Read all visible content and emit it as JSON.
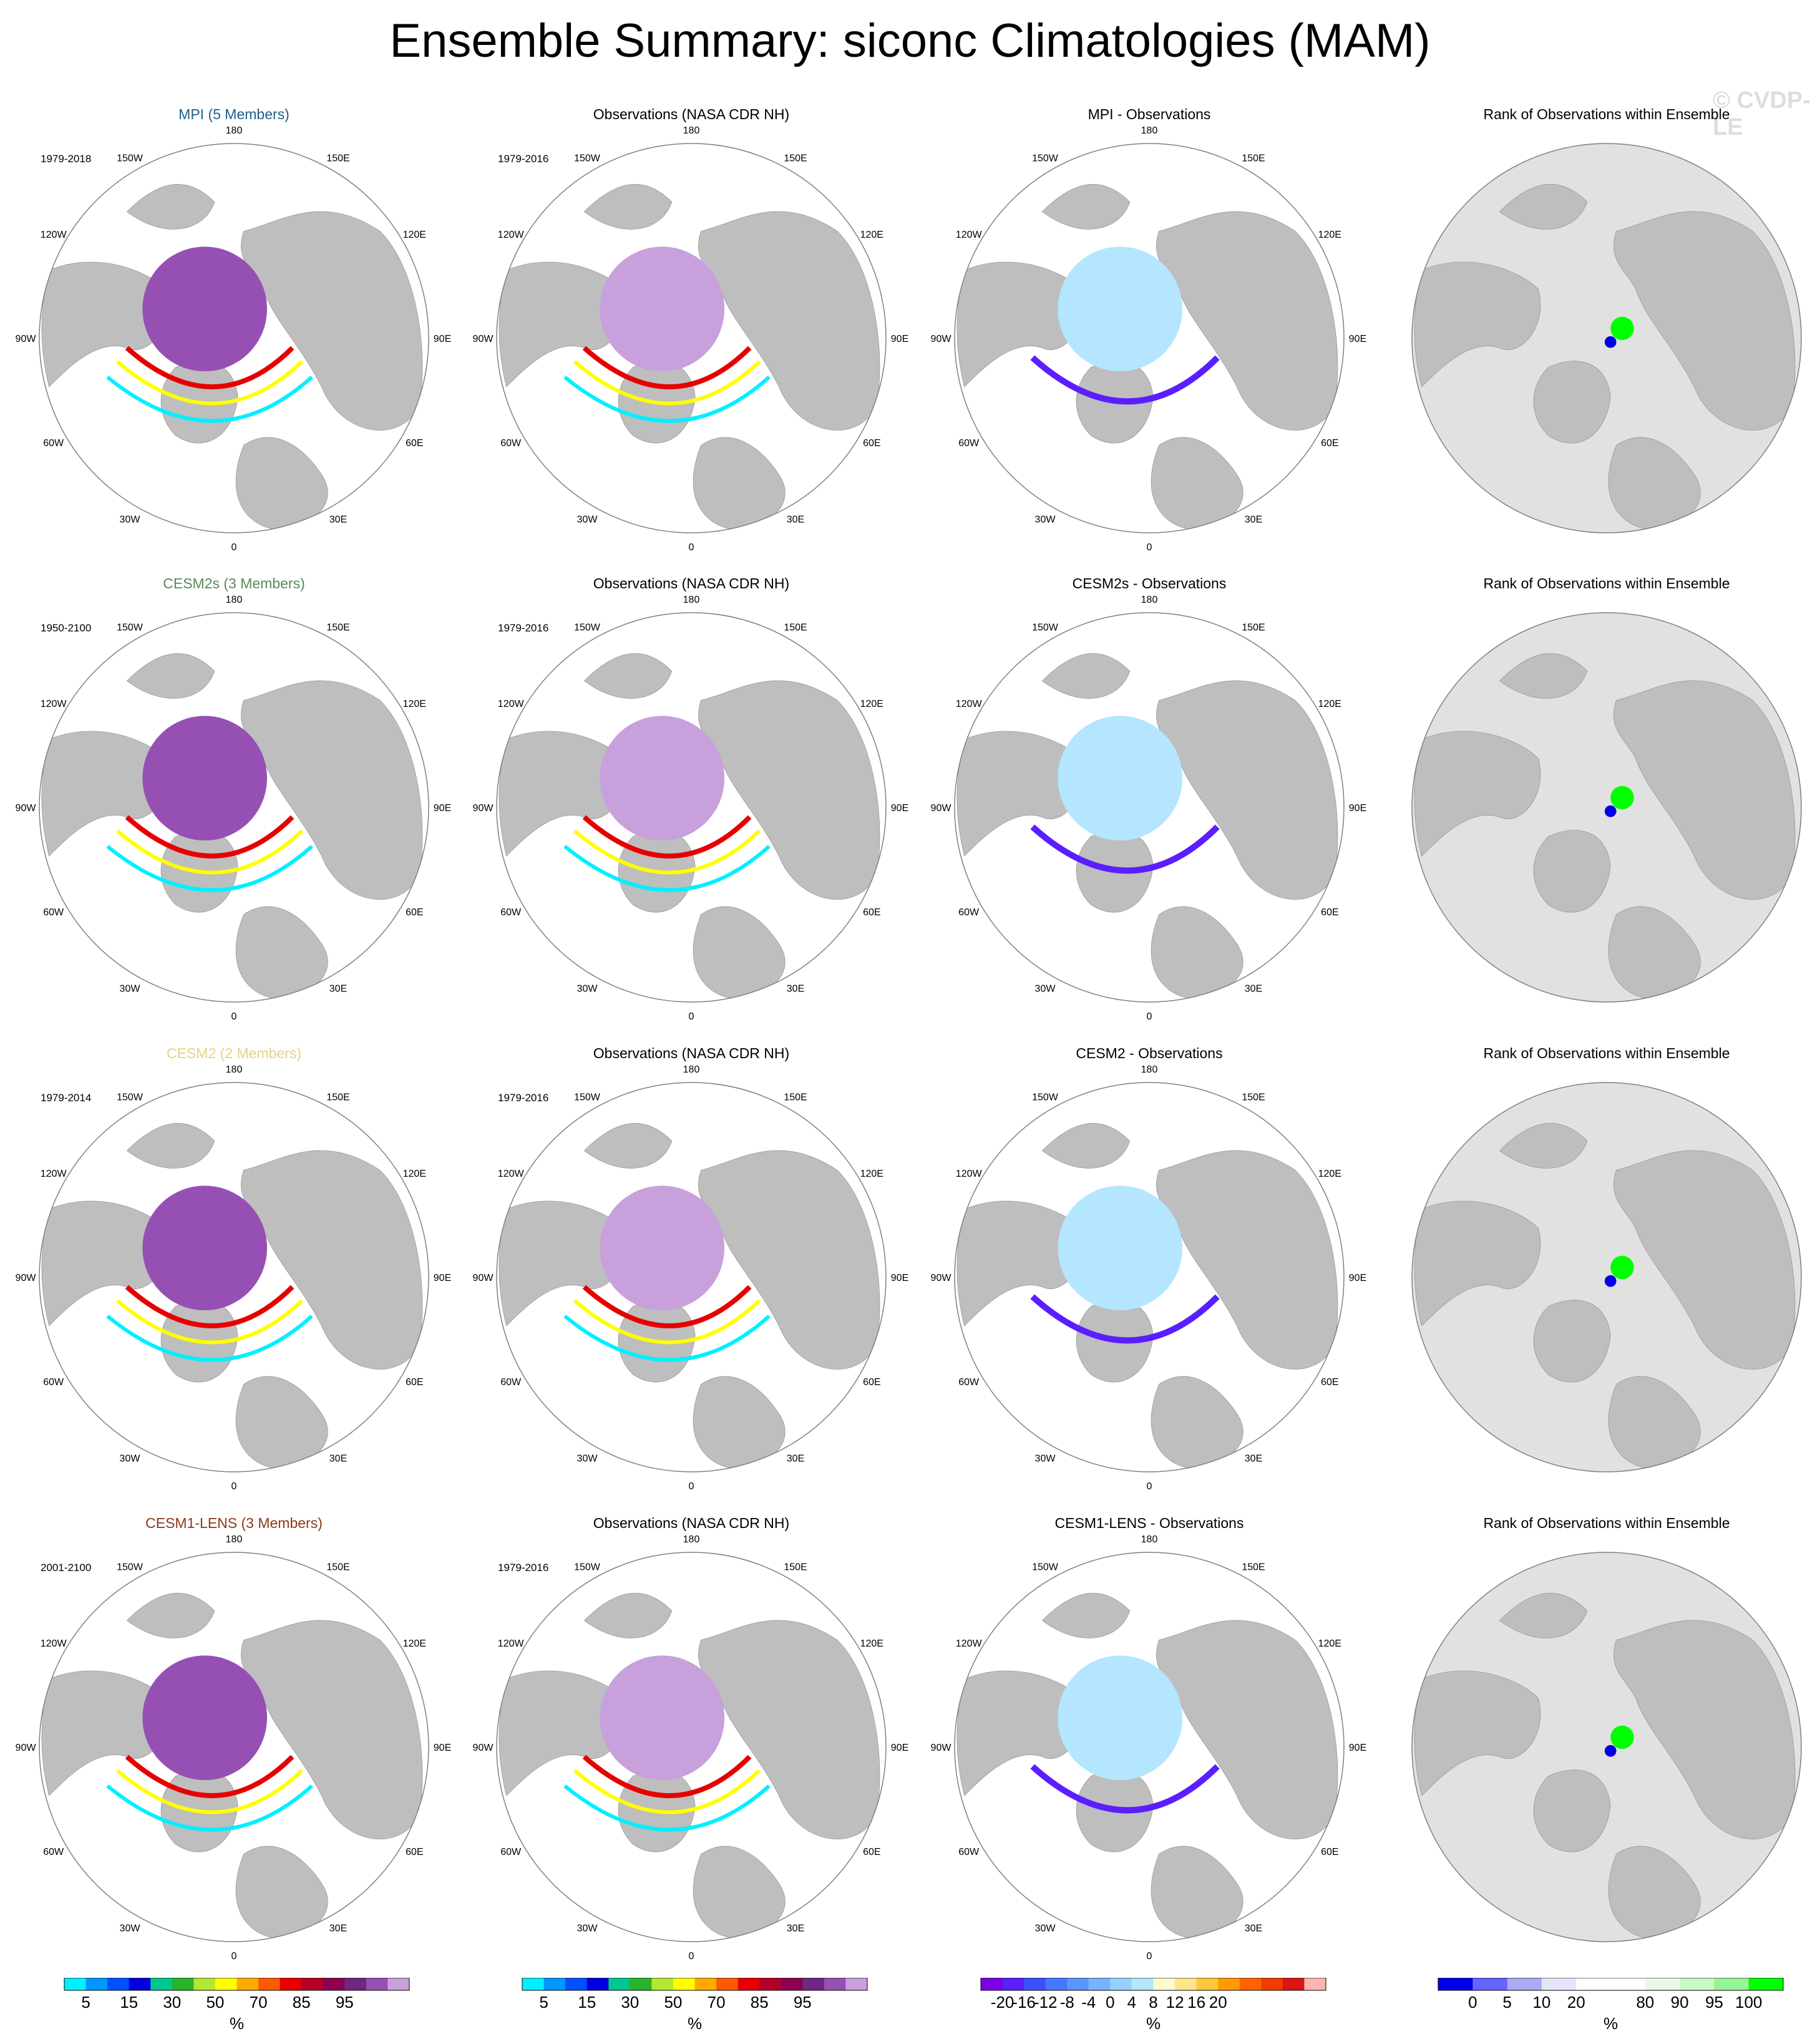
{
  "title": "Ensemble Summary: siconc Climatologies (MAM)",
  "watermark": "© CVDP-LE",
  "lon_labels": [
    "180",
    "150E",
    "120E",
    "90E",
    "60E",
    "30E",
    "0",
    "30W",
    "60W",
    "90W",
    "120W",
    "150W"
  ],
  "rows": [
    {
      "ens": {
        "title": "MPI (5 Members)",
        "color": "#1f5f8b",
        "period": "1979-2018"
      },
      "obs": {
        "title": "Observations (NASA CDR NH)",
        "period": "1979-2016"
      },
      "diff": {
        "title": "MPI - Observations"
      },
      "rank": {
        "title": "Rank of Observations within Ensemble"
      }
    },
    {
      "ens": {
        "title": "CESM2s (3 Members)",
        "color": "#5a8a5a",
        "period": "1950-2100"
      },
      "obs": {
        "title": "Observations (NASA CDR NH)",
        "period": "1979-2016"
      },
      "diff": {
        "title": "CESM2s - Observations"
      },
      "rank": {
        "title": "Rank of Observations within Ensemble"
      }
    },
    {
      "ens": {
        "title": "CESM2 (2 Members)",
        "color": "#e8d18a",
        "period": "1979-2014"
      },
      "obs": {
        "title": "Observations (NASA CDR NH)",
        "period": "1979-2016"
      },
      "diff": {
        "title": "CESM2 - Observations"
      },
      "rank": {
        "title": "Rank of Observations within Ensemble"
      }
    },
    {
      "ens": {
        "title": "CESM1-LENS (3 Members)",
        "color": "#8b3a1a",
        "period": "2001-2100"
      },
      "obs": {
        "title": "Observations (NASA CDR NH)",
        "period": "1979-2016"
      },
      "diff": {
        "title": "CESM1-LENS - Observations"
      },
      "rank": {
        "title": "Rank of Observations within Ensemble"
      }
    }
  ],
  "colorbars": [
    {
      "unit": "%",
      "colors": [
        "#00f0ff",
        "#0096ff",
        "#0050ff",
        "#0000e0",
        "#00c88c",
        "#28b428",
        "#b4e632",
        "#ffff00",
        "#ffaa00",
        "#ff5a00",
        "#e60000",
        "#b40028",
        "#8c0050",
        "#6e2880",
        "#9650b4",
        "#c8a0dc"
      ],
      "tick_labels": [
        "5",
        "15",
        "30",
        "50",
        "70",
        "85",
        "95"
      ],
      "tick_positions": [
        1,
        3,
        5,
        7,
        9,
        11,
        13
      ]
    },
    {
      "unit": "%",
      "colors": [
        "#00f0ff",
        "#0096ff",
        "#0050ff",
        "#0000e0",
        "#00c88c",
        "#28b428",
        "#b4e632",
        "#ffff00",
        "#ffaa00",
        "#ff5a00",
        "#e60000",
        "#b40028",
        "#8c0050",
        "#6e2880",
        "#9650b4",
        "#c8a0dc"
      ],
      "tick_labels": [
        "5",
        "15",
        "30",
        "50",
        "70",
        "85",
        "95"
      ],
      "tick_positions": [
        1,
        3,
        5,
        7,
        9,
        11,
        13
      ]
    },
    {
      "unit": "%",
      "colors": [
        "#7a00e6",
        "#5a1eff",
        "#3c50ff",
        "#4678ff",
        "#5a96ff",
        "#78b4ff",
        "#96d2ff",
        "#b4e6ff",
        "#fffacd",
        "#ffe68c",
        "#ffc83c",
        "#ff9a00",
        "#ff6400",
        "#f03c00",
        "#dc1414",
        "#ffb4b4"
      ],
      "tick_labels": [
        "-20",
        "-16",
        "-12",
        "-8",
        "-4",
        "0",
        "4",
        "8",
        "12",
        "16",
        "20"
      ],
      "tick_positions": [
        1,
        2,
        3,
        4,
        5,
        6,
        7,
        8,
        9,
        10,
        11
      ]
    },
    {
      "unit": "%",
      "colors": [
        "#0000e6",
        "#6464ff",
        "#aaaaf5",
        "#e6e6fa",
        "#ffffff",
        "#ffffff",
        "#e6fae6",
        "#c8fac8",
        "#96f596",
        "#00ff00"
      ],
      "tick_labels": [
        "0",
        "5",
        "10",
        "20",
        "80",
        "90",
        "95",
        "100"
      ],
      "tick_positions": [
        1,
        2,
        3,
        4,
        6,
        7,
        8,
        9
      ]
    }
  ]
}
